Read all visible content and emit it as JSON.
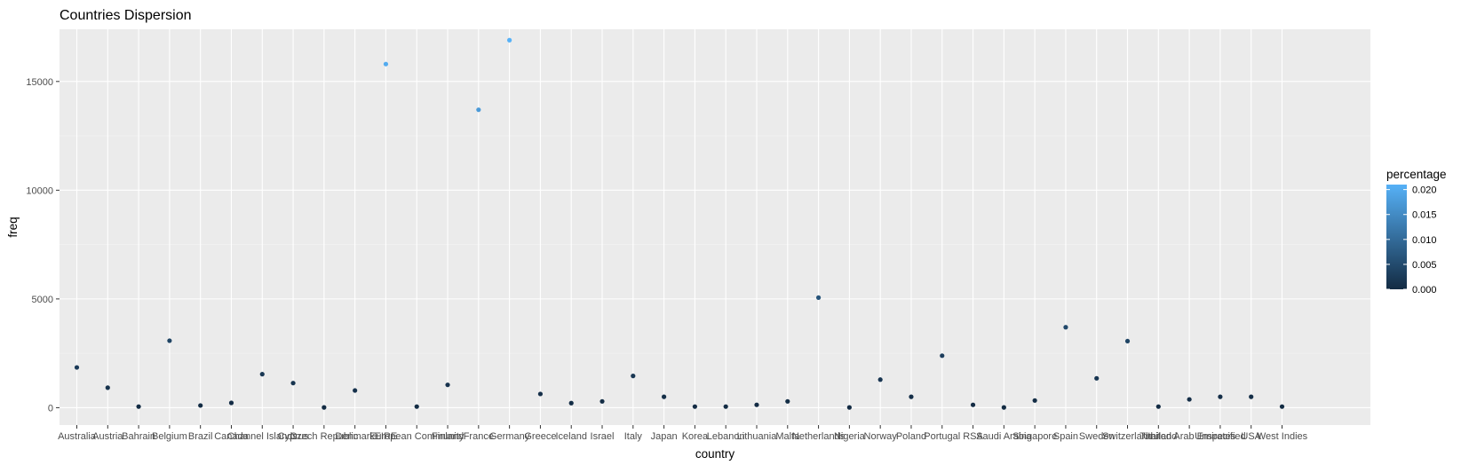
{
  "chart_data": {
    "type": "scatter",
    "title": "Countries Dispersion",
    "xlabel": "country",
    "ylabel": "freq",
    "ylim": [
      -800,
      17400
    ],
    "yticks": [
      0,
      5000,
      10000,
      15000
    ],
    "ytick_labels": [
      "0",
      "5000",
      "10000",
      "15000"
    ],
    "grid": true,
    "legend": {
      "title": "percentage",
      "position": "right",
      "range": [
        0,
        0.021
      ],
      "ticks": [
        0.0,
        0.005,
        0.01,
        0.015,
        0.02
      ],
      "tick_labels": [
        "0.000",
        "0.005",
        "0.010",
        "0.015",
        "0.020"
      ],
      "low_color": "#132B43",
      "high_color": "#56B1F7"
    },
    "categories": [
      "Australia",
      "Austria",
      "Bahrain",
      "Belgium",
      "Brazil",
      "Canada",
      "Channel Islands",
      "Cyprus",
      "Czech Republic",
      "Denmark",
      "EIRE",
      "European Community",
      "Finland",
      "France",
      "Germany",
      "Greece",
      "Iceland",
      "Israel",
      "Italy",
      "Japan",
      "Korea",
      "Lebanon",
      "Lithuania",
      "Malta",
      "Netherlands",
      "Nigeria",
      "Norway",
      "Poland",
      "Portugal",
      "RSA",
      "Saudi Arabia",
      "Singapore",
      "Spain",
      "Sweden",
      "Switzerland",
      "Thailand",
      "United Arab Emirates",
      "Unspecified",
      "USA",
      "West Indies"
    ],
    "points": [
      {
        "country": "Australia",
        "freq": 1850,
        "percentage": 0.0024
      },
      {
        "country": "Austria",
        "freq": 920,
        "percentage": 0.0012
      },
      {
        "country": "Bahrain",
        "freq": 50,
        "percentage": 0.0001
      },
      {
        "country": "Belgium",
        "freq": 3080,
        "percentage": 0.0039
      },
      {
        "country": "Brazil",
        "freq": 100,
        "percentage": 0.0001
      },
      {
        "country": "Canada",
        "freq": 220,
        "percentage": 0.0003
      },
      {
        "country": "Channel Islands",
        "freq": 1540,
        "percentage": 0.002
      },
      {
        "country": "Cyprus",
        "freq": 1130,
        "percentage": 0.0014
      },
      {
        "country": "Czech Republic",
        "freq": 10,
        "percentage": 0.0
      },
      {
        "country": "Denmark",
        "freq": 790,
        "percentage": 0.001
      },
      {
        "country": "EIRE",
        "freq": 15800,
        "percentage": 0.0201
      },
      {
        "country": "European Community",
        "freq": 50,
        "percentage": 0.0001
      },
      {
        "country": "Finland",
        "freq": 1050,
        "percentage": 0.0013
      },
      {
        "country": "France",
        "freq": 13700,
        "percentage": 0.0174
      },
      {
        "country": "Germany",
        "freq": 16900,
        "percentage": 0.0215
      },
      {
        "country": "Greece",
        "freq": 630,
        "percentage": 0.0008
      },
      {
        "country": "Iceland",
        "freq": 210,
        "percentage": 0.0003
      },
      {
        "country": "Israel",
        "freq": 290,
        "percentage": 0.0004
      },
      {
        "country": "Italy",
        "freq": 1460,
        "percentage": 0.0019
      },
      {
        "country": "Japan",
        "freq": 500,
        "percentage": 0.0006
      },
      {
        "country": "Korea",
        "freq": 50,
        "percentage": 0.0001
      },
      {
        "country": "Lebanon",
        "freq": 50,
        "percentage": 0.0001
      },
      {
        "country": "Lithuania",
        "freq": 130,
        "percentage": 0.0002
      },
      {
        "country": "Malta",
        "freq": 290,
        "percentage": 0.0004
      },
      {
        "country": "Netherlands",
        "freq": 5060,
        "percentage": 0.0064
      },
      {
        "country": "Nigeria",
        "freq": 10,
        "percentage": 0.0
      },
      {
        "country": "Norway",
        "freq": 1290,
        "percentage": 0.0016
      },
      {
        "country": "Poland",
        "freq": 500,
        "percentage": 0.0006
      },
      {
        "country": "Portugal",
        "freq": 2390,
        "percentage": 0.003
      },
      {
        "country": "RSA",
        "freq": 130,
        "percentage": 0.0002
      },
      {
        "country": "Saudi Arabia",
        "freq": 10,
        "percentage": 0.0
      },
      {
        "country": "Singapore",
        "freq": 330,
        "percentage": 0.0004
      },
      {
        "country": "Spain",
        "freq": 3700,
        "percentage": 0.0047
      },
      {
        "country": "Sweden",
        "freq": 1350,
        "percentage": 0.0017
      },
      {
        "country": "Switzerland",
        "freq": 3060,
        "percentage": 0.0039
      },
      {
        "country": "Thailand",
        "freq": 50,
        "percentage": 0.0001
      },
      {
        "country": "United Arab Emirates",
        "freq": 380,
        "percentage": 0.0005
      },
      {
        "country": "Unspecified",
        "freq": 500,
        "percentage": 0.0006
      },
      {
        "country": "USA",
        "freq": 500,
        "percentage": 0.0006
      },
      {
        "country": "West Indies",
        "freq": 50,
        "percentage": 0.0001
      }
    ]
  }
}
